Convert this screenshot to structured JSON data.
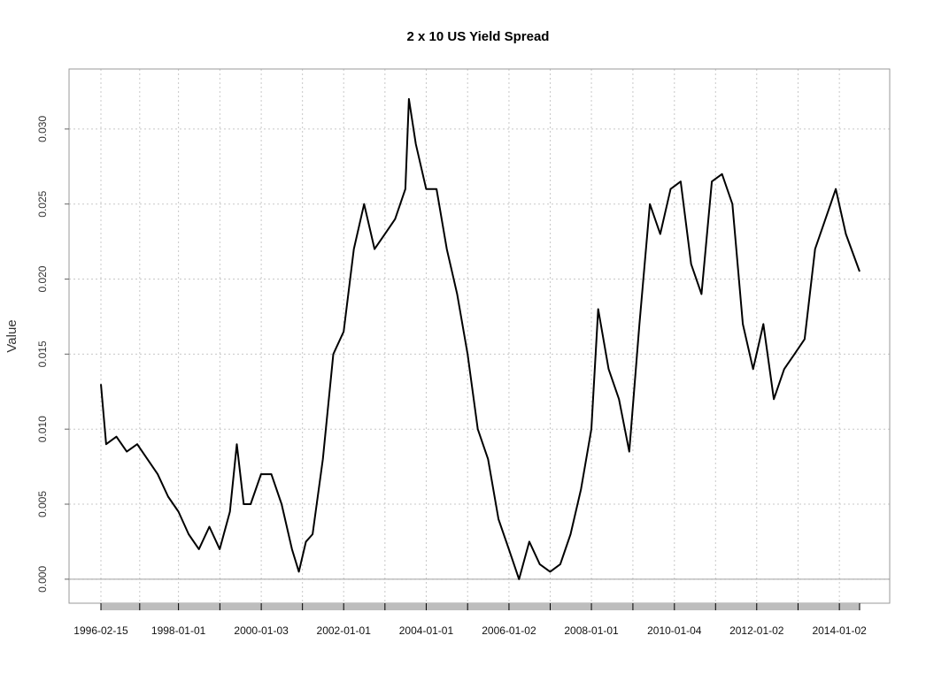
{
  "chart_data": {
    "type": "line",
    "title": "2 x 10 US Yield Spread",
    "xlabel": "",
    "ylabel": "Value",
    "xlim": [
      "1996-02-15",
      "2014-06-30"
    ],
    "ylim": [
      -0.0016,
      0.034
    ],
    "grid": true,
    "y_ticks": [
      "0.000",
      "0.005",
      "0.010",
      "0.015",
      "0.020",
      "0.025",
      "0.030"
    ],
    "x_tick_labels": [
      "1996-02-15",
      "1998-01-01",
      "2000-01-03",
      "2002-01-01",
      "2004-01-01",
      "2006-01-02",
      "2008-01-01",
      "2010-01-04",
      "2012-01-02",
      "2014-01-02"
    ],
    "series": [
      {
        "color": "#000000",
        "points": [
          [
            "1996-02-15",
            0.013
          ],
          [
            "1996-04-01",
            0.009
          ],
          [
            "1996-07-01",
            0.0095
          ],
          [
            "1996-10-01",
            0.0085
          ],
          [
            "1997-01-01",
            0.009
          ],
          [
            "1997-04-01",
            0.008
          ],
          [
            "1997-07-01",
            0.007
          ],
          [
            "1997-10-01",
            0.0055
          ],
          [
            "1998-01-01",
            0.0045
          ],
          [
            "1998-04-01",
            0.003
          ],
          [
            "1998-07-01",
            0.002
          ],
          [
            "1998-10-01",
            0.0035
          ],
          [
            "1999-01-01",
            0.002
          ],
          [
            "1999-04-01",
            0.0045
          ],
          [
            "1999-06-01",
            0.009
          ],
          [
            "1999-08-01",
            0.005
          ],
          [
            "1999-10-01",
            0.005
          ],
          [
            "2000-01-01",
            0.007
          ],
          [
            "2000-04-01",
            0.007
          ],
          [
            "2000-07-01",
            0.005
          ],
          [
            "2000-10-01",
            0.002
          ],
          [
            "2000-12-01",
            0.0005
          ],
          [
            "2001-02-01",
            0.0025
          ],
          [
            "2001-04-01",
            0.003
          ],
          [
            "2001-07-01",
            0.008
          ],
          [
            "2001-10-01",
            0.015
          ],
          [
            "2002-01-01",
            0.0165
          ],
          [
            "2002-04-01",
            0.022
          ],
          [
            "2002-07-01",
            0.025
          ],
          [
            "2002-10-01",
            0.022
          ],
          [
            "2003-01-01",
            0.023
          ],
          [
            "2003-04-01",
            0.024
          ],
          [
            "2003-07-01",
            0.026
          ],
          [
            "2003-08-01",
            0.032
          ],
          [
            "2003-10-01",
            0.029
          ],
          [
            "2004-01-01",
            0.026
          ],
          [
            "2004-04-01",
            0.026
          ],
          [
            "2004-07-01",
            0.022
          ],
          [
            "2004-10-01",
            0.019
          ],
          [
            "2005-01-01",
            0.015
          ],
          [
            "2005-04-01",
            0.01
          ],
          [
            "2005-07-01",
            0.008
          ],
          [
            "2005-10-01",
            0.004
          ],
          [
            "2006-01-01",
            0.002
          ],
          [
            "2006-04-01",
            0.0
          ],
          [
            "2006-07-01",
            0.0025
          ],
          [
            "2006-10-01",
            0.001
          ],
          [
            "2007-01-01",
            0.0005
          ],
          [
            "2007-04-01",
            0.001
          ],
          [
            "2007-07-01",
            0.003
          ],
          [
            "2007-10-01",
            0.006
          ],
          [
            "2008-01-01",
            0.01
          ],
          [
            "2008-03-01",
            0.018
          ],
          [
            "2008-06-01",
            0.014
          ],
          [
            "2008-09-01",
            0.012
          ],
          [
            "2008-12-01",
            0.0085
          ],
          [
            "2009-03-01",
            0.017
          ],
          [
            "2009-06-01",
            0.025
          ],
          [
            "2009-09-01",
            0.023
          ],
          [
            "2009-12-01",
            0.026
          ],
          [
            "2010-03-01",
            0.0265
          ],
          [
            "2010-06-01",
            0.021
          ],
          [
            "2010-09-01",
            0.019
          ],
          [
            "2010-12-01",
            0.0265
          ],
          [
            "2011-03-01",
            0.027
          ],
          [
            "2011-06-01",
            0.025
          ],
          [
            "2011-09-01",
            0.017
          ],
          [
            "2011-12-01",
            0.014
          ],
          [
            "2012-03-01",
            0.017
          ],
          [
            "2012-06-01",
            0.012
          ],
          [
            "2012-09-01",
            0.014
          ],
          [
            "2012-12-01",
            0.015
          ],
          [
            "2013-03-01",
            0.016
          ],
          [
            "2013-06-01",
            0.022
          ],
          [
            "2013-09-01",
            0.024
          ],
          [
            "2013-12-01",
            0.026
          ],
          [
            "2014-03-01",
            0.023
          ],
          [
            "2014-06-30",
            0.0205
          ]
        ]
      }
    ]
  }
}
